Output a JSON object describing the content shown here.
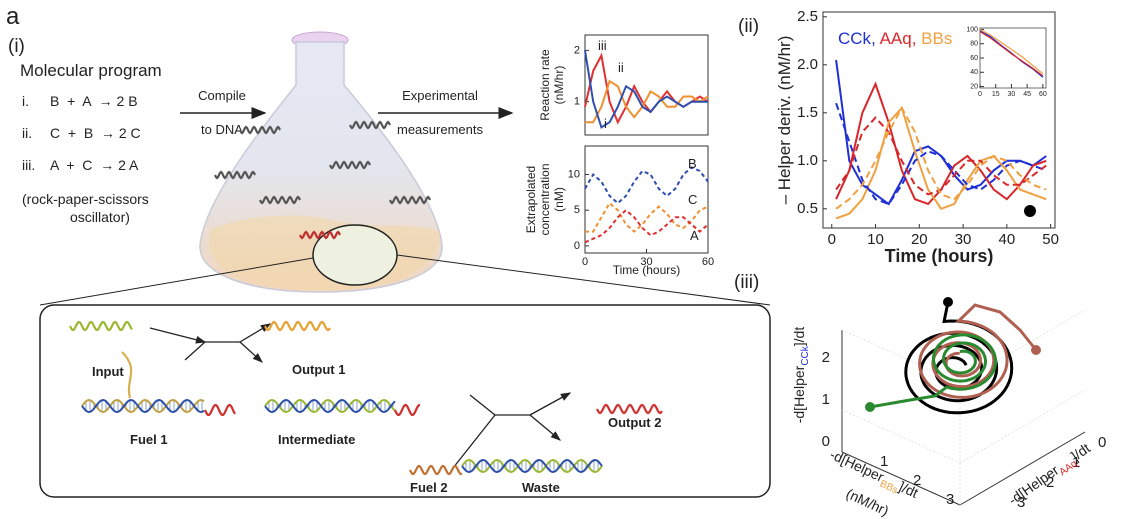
{
  "panel_label": "a",
  "sub_labels": [
    "(i)",
    "(ii)",
    "(iii)"
  ],
  "program": {
    "title": "Molecular program",
    "reactions": [
      {
        "num": "i.",
        "text": "B  +  A  → 2 B"
      },
      {
        "num": "ii.",
        "text": "C  +  B  → 2 C"
      },
      {
        "num": "iii.",
        "text": "A  +  C  → 2 A"
      }
    ],
    "note": [
      "(rock-paper-scissors",
      "oscillator)"
    ]
  },
  "arrows": {
    "compile": [
      "Compile",
      "to DNA"
    ],
    "measure": [
      "Experimental",
      "measurements"
    ]
  },
  "mechanism": {
    "input": "Input",
    "output1": "Output 1",
    "fuel1": "Fuel 1",
    "intermediate": "Intermediate",
    "output2": "Output 2",
    "fuel2": "Fuel 2",
    "waste": "Waste"
  },
  "chart_data": [
    {
      "type": "line",
      "ylabel": [
        "Reaction rate",
        "(nM/hr)"
      ],
      "x": [
        0,
        4,
        8,
        12,
        16,
        20,
        24,
        28,
        32,
        36,
        40,
        44,
        48,
        52,
        56,
        60
      ],
      "xlim": [
        0,
        60
      ],
      "ylim": [
        0.35,
        2.3
      ],
      "yticks": [
        1,
        2
      ],
      "series": [
        {
          "name": "iii",
          "color": "#e03030",
          "values": [
            0.9,
            1.6,
            1.9,
            1.0,
            0.6,
            0.9,
            1.3,
            1.0,
            0.8,
            1.0,
            1.2,
            1.0,
            0.9,
            1.0,
            1.1,
            1.0
          ]
        },
        {
          "name": "ii",
          "color": "#f09030",
          "values": [
            0.6,
            0.6,
            0.9,
            1.4,
            1.3,
            0.9,
            0.7,
            0.9,
            1.2,
            1.1,
            0.9,
            0.9,
            1.1,
            1.1,
            1.0,
            1.1
          ]
        },
        {
          "name": "i",
          "color": "#2e4fb0",
          "values": [
            2.0,
            1.0,
            0.5,
            0.6,
            0.9,
            1.3,
            1.2,
            0.9,
            0.8,
            1.0,
            1.1,
            1.0,
            0.9,
            1.0,
            1.0,
            1.0
          ]
        }
      ]
    },
    {
      "type": "line",
      "ylabel": [
        "Extrapolated",
        "concentration",
        "(nM)"
      ],
      "xlabel": "Time (hours)",
      "x": [
        0,
        4,
        8,
        12,
        16,
        20,
        24,
        28,
        32,
        36,
        40,
        44,
        48,
        52,
        56,
        60
      ],
      "xlim": [
        0,
        60
      ],
      "ylim": [
        -1,
        14
      ],
      "xticks": [
        0,
        30,
        60
      ],
      "yticks": [
        0,
        5,
        10
      ],
      "series": [
        {
          "name": "B",
          "color": "#2e4fb0",
          "linestyle": "dashed",
          "values": [
            8,
            10,
            9,
            7,
            6,
            7,
            9,
            10.5,
            10,
            8,
            7,
            8,
            10,
            11,
            10.5,
            9
          ]
        },
        {
          "name": "C",
          "color": "#f09030",
          "linestyle": "dashed",
          "values": [
            2,
            2,
            4,
            6,
            5,
            3,
            2,
            3,
            4.5,
            5.5,
            4.5,
            3,
            2.5,
            3.5,
            5,
            5.5
          ]
        },
        {
          "name": "A",
          "color": "#e03030",
          "linestyle": "dashed",
          "values": [
            0.5,
            1,
            1.5,
            2.5,
            4,
            5,
            4,
            2.5,
            1.5,
            2,
            3,
            4,
            4,
            3,
            2,
            3
          ]
        }
      ]
    },
    {
      "type": "line",
      "ylabel": "– Helper deriv. (nM/hr)",
      "xlabel": "Time (hours)",
      "legend_separator": ", ",
      "x": [
        1,
        4,
        7,
        10,
        13,
        16,
        19,
        22,
        25,
        28,
        31,
        34,
        37,
        40,
        43,
        46,
        49
      ],
      "xlim": [
        -2,
        51
      ],
      "ylim": [
        0.3,
        2.55
      ],
      "xticks": [
        0,
        10,
        20,
        30,
        40,
        50
      ],
      "yticks": [
        0.5,
        {
          "value": 1,
          "label": "1.0"
        },
        1.5,
        {
          "value": 2,
          "label": "2.0"
        },
        2.5
      ],
      "series": [
        {
          "name": "CCk",
          "color": "#1f2fd6",
          "values": [
            2.05,
            1.0,
            0.75,
            0.65,
            0.55,
            0.8,
            1.1,
            1.15,
            1.05,
            0.85,
            0.7,
            0.75,
            0.9,
            1.0,
            1.0,
            0.95,
            1.05
          ]
        },
        {
          "name": "AAq",
          "color": "#d8262a",
          "values": [
            0.6,
            0.9,
            1.5,
            1.8,
            1.4,
            0.9,
            0.6,
            0.55,
            0.7,
            0.95,
            1.05,
            0.9,
            0.7,
            0.6,
            0.75,
            0.95,
            1.0
          ]
        },
        {
          "name": "BBs",
          "color": "#f0a040",
          "values": [
            0.4,
            0.45,
            0.6,
            0.9,
            1.4,
            1.55,
            1.1,
            0.7,
            0.5,
            0.55,
            0.8,
            1.0,
            1.05,
            0.9,
            0.7,
            0.65,
            0.6
          ]
        },
        {
          "color": "#1f2fd6",
          "linestyle": "dashed",
          "values": [
            1.6,
            1.2,
            0.8,
            0.6,
            0.55,
            0.75,
            1.0,
            1.1,
            1.05,
            0.9,
            0.75,
            0.7,
            0.8,
            0.95,
            1.0,
            0.95,
            0.9
          ]
        },
        {
          "color": "#d8262a",
          "linestyle": "dashed",
          "values": [
            0.7,
            0.9,
            1.3,
            1.45,
            1.3,
            1.0,
            0.75,
            0.65,
            0.7,
            0.85,
            1.0,
            1.0,
            0.85,
            0.75,
            0.75,
            0.85,
            0.95
          ]
        },
        {
          "color": "#f0a040",
          "linestyle": "dashed",
          "values": [
            0.5,
            0.6,
            0.75,
            1.0,
            1.3,
            1.55,
            1.3,
            0.9,
            0.65,
            0.6,
            0.75,
            0.95,
            1.05,
            1.0,
            0.85,
            0.75,
            0.7
          ]
        }
      ]
    },
    {
      "type": "line",
      "x": [
        0,
        10,
        20,
        30,
        40,
        50,
        60
      ],
      "xlim": [
        0,
        63
      ],
      "ylim": [
        18,
        102
      ],
      "xticks": [
        0,
        15,
        30,
        45,
        60
      ],
      "yticks": [
        20,
        40,
        60,
        80,
        100
      ],
      "series": [
        {
          "color": "#1f2fd6",
          "values": [
            98,
            90,
            78,
            67,
            55,
            45,
            33
          ]
        },
        {
          "color": "#d8262a",
          "values": [
            97,
            88,
            77,
            66,
            56,
            46,
            35
          ]
        },
        {
          "color": "#f0a040",
          "values": [
            100,
            92,
            82,
            72,
            62,
            50,
            38
          ]
        }
      ]
    }
  ],
  "phase_plot": {
    "z_ticks": [
      "0",
      "1",
      "2"
    ],
    "z_label": [
      "-d[Helper",
      "CCk",
      "]/dt"
    ],
    "left_ticks": [
      "1",
      "2",
      "3"
    ],
    "left_label": [
      "-d[Helper",
      "BBs",
      "]/dt"
    ],
    "left_unit": "(nM/hr)",
    "right_ticks": [
      "0",
      "1",
      "2",
      "3"
    ],
    "right_label": [
      "-d[Helper",
      "AAq",
      "]/dt"
    ]
  }
}
